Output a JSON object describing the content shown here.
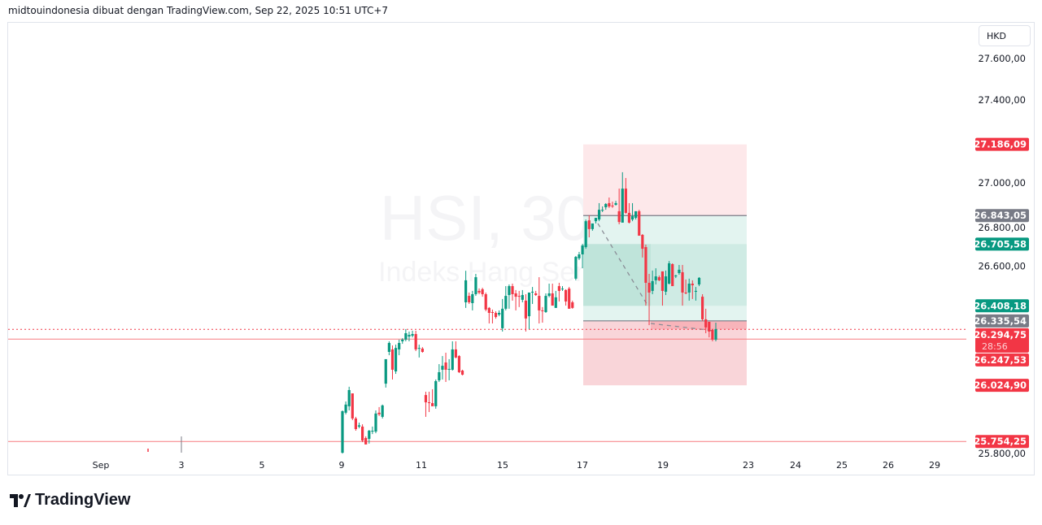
{
  "header": {
    "attribution": "midtouindonesia dibuat dengan TradingView.com, Sep 22, 2025 10:51 UTC+7"
  },
  "watermark": {
    "symbol": "HSI, 30",
    "name": "Indeks Hang Seng"
  },
  "currency_button": "HKD",
  "logo": {
    "text": "TradingView"
  },
  "colors": {
    "up": "#089981",
    "down": "#f23645",
    "label_gray": "#787b86",
    "axis_text": "#131722"
  },
  "chart_data": {
    "type": "candlestick",
    "interval": "30",
    "ylim": [
      25700,
      27700
    ],
    "grid": false,
    "x_ticks": [
      "Sep",
      "3",
      "5",
      "9",
      "11",
      "15",
      "17",
      "19",
      "23",
      "24",
      "25",
      "26",
      "29"
    ],
    "y_ticks": [
      "27.600,00",
      "27.400,00",
      "27.000,00",
      "26.800,00",
      "26.600,00",
      "25.800,00"
    ],
    "y_tick_values": [
      27600,
      27400,
      27000,
      26800,
      26600,
      25800
    ],
    "candles_ohlc": [
      [
        25700,
        25904,
        25696,
        25900
      ],
      [
        25893,
        25947,
        25885,
        25932
      ],
      [
        25924,
        26018,
        25904,
        26002
      ],
      [
        25986,
        25986,
        25857,
        25865
      ],
      [
        25865,
        25873,
        25806,
        25814
      ],
      [
        25826,
        25845,
        25818,
        25832
      ],
      [
        25826,
        25837,
        25751,
        25759
      ],
      [
        25771,
        25779,
        25740,
        25740
      ],
      [
        25767,
        25810,
        25744,
        25806
      ],
      [
        25802,
        25826,
        25790,
        25806
      ],
      [
        25802,
        25904,
        25794,
        25889
      ],
      [
        25893,
        25920,
        25877,
        25885
      ],
      [
        25873,
        25932,
        25865,
        25928
      ],
      [
        26033,
        26041,
        26014,
        26151
      ],
      [
        26186,
        26237,
        26170,
        26229
      ],
      [
        26198,
        26217,
        26053,
        26100
      ],
      [
        26092,
        26221,
        26080,
        26205
      ],
      [
        26198,
        26245,
        26170,
        26229
      ],
      [
        26237,
        26252,
        26225,
        26245
      ],
      [
        26245,
        26296,
        26237,
        26276
      ],
      [
        26260,
        26284,
        26237,
        26268
      ],
      [
        26264,
        26288,
        26256,
        26272
      ],
      [
        26272,
        26288,
        26190,
        26198
      ],
      [
        26202,
        26221,
        26159,
        26205
      ],
      [
        26202,
        26209,
        26182,
        26186
      ],
      [
        25978,
        25994,
        25873,
        25943
      ],
      [
        25943,
        25994,
        25896,
        25941
      ],
      [
        25939,
        26006,
        25932,
        25924
      ],
      [
        25924,
        26053,
        25912,
        26045
      ],
      [
        26049,
        26127,
        26041,
        26088
      ],
      [
        26100,
        26166,
        26053,
        26119
      ],
      [
        26135,
        26182,
        26041,
        26100
      ],
      [
        26100,
        26151,
        26049,
        26104
      ],
      [
        26100,
        26237,
        26096,
        26198
      ],
      [
        26198,
        26237,
        26155,
        26159
      ],
      [
        26166,
        26170,
        26084,
        26088
      ],
      [
        26096,
        26100,
        26073,
        26076
      ],
      [
        26425,
        26577,
        26398,
        26531
      ],
      [
        26456,
        26472,
        26417,
        26425
      ],
      [
        26421,
        26480,
        26386,
        26464
      ],
      [
        26464,
        26562,
        26456,
        26546
      ],
      [
        26480,
        26492,
        26464,
        26472
      ],
      [
        26488,
        26495,
        26452,
        26464
      ],
      [
        26464,
        26472,
        26382,
        26390
      ],
      [
        26398,
        26402,
        26323,
        26374
      ],
      [
        26378,
        26390,
        26323,
        26376
      ],
      [
        26374,
        26382,
        26346,
        26354
      ],
      [
        26366,
        26386,
        26358,
        26374
      ],
      [
        26300,
        26441,
        26284,
        26394
      ],
      [
        26394,
        26503,
        26386,
        26456
      ],
      [
        26460,
        26511,
        26394,
        26503
      ],
      [
        26503,
        26515,
        26433,
        26464
      ],
      [
        26468,
        26484,
        26386,
        26452
      ],
      [
        26456,
        26480,
        26402,
        26453
      ],
      [
        26437,
        26484,
        26425,
        26460
      ],
      [
        26433,
        26464,
        26284,
        26347
      ],
      [
        26358,
        26464,
        26296,
        26472
      ],
      [
        26472,
        26499,
        26417,
        26476
      ],
      [
        26468,
        26480,
        26456,
        26460
      ],
      [
        26456,
        26546,
        26323,
        26386
      ],
      [
        26386,
        26402,
        26327,
        26382
      ],
      [
        26378,
        26468,
        26374,
        26456
      ],
      [
        26456,
        26515,
        26449,
        26468
      ],
      [
        26468,
        26515,
        26409,
        26409
      ],
      [
        26398,
        26480,
        26398,
        26449
      ],
      [
        26503,
        26519,
        26429,
        26480
      ],
      [
        26488,
        26503,
        26480,
        26491
      ],
      [
        26484,
        26488,
        26409,
        26429
      ],
      [
        26491,
        26499,
        26394,
        26394
      ],
      [
        26425,
        26433,
        26394,
        26398
      ],
      [
        26539,
        26648,
        26531,
        26644
      ],
      [
        26637,
        26668,
        26629,
        26656
      ],
      [
        26656,
        26707,
        26589,
        26699
      ],
      [
        26691,
        26824,
        26683,
        26816
      ],
      [
        26820,
        26844,
        26738,
        26778
      ],
      [
        26778,
        26793,
        26770,
        26805
      ],
      [
        26816,
        26832,
        26805,
        26832
      ],
      [
        26824,
        26903,
        26816,
        26871
      ],
      [
        26868,
        26887,
        26860,
        26871
      ],
      [
        26883,
        26903,
        26871,
        26899
      ],
      [
        26903,
        26930,
        26880,
        26887
      ],
      [
        26891,
        26910,
        26880,
        26890
      ],
      [
        26895,
        26914,
        26891,
        26903
      ],
      [
        26864,
        26973,
        26801,
        26812
      ],
      [
        26809,
        27052,
        26809,
        26973
      ],
      [
        26973,
        27024,
        26852,
        26856
      ],
      [
        26856,
        26903,
        26805,
        26809
      ],
      [
        26824,
        26903,
        26816,
        26840
      ],
      [
        26832,
        26864,
        26824,
        26864
      ],
      [
        26864,
        26871,
        26746,
        26746
      ],
      [
        26750,
        26754,
        26641,
        26683
      ],
      [
        26691,
        26703,
        26409,
        26519
      ],
      [
        26519,
        26562,
        26315,
        26472
      ],
      [
        26480,
        26578,
        26464,
        26527
      ],
      [
        26531,
        26589,
        26511,
        26550
      ],
      [
        26546,
        26554,
        26527,
        26531
      ],
      [
        26574,
        26574,
        26409,
        26480
      ],
      [
        26476,
        26578,
        26460,
        26550
      ],
      [
        26515,
        26624,
        26511,
        26613
      ],
      [
        26609,
        26613,
        26511,
        26503
      ],
      [
        26550,
        26558,
        26542,
        26554
      ],
      [
        26566,
        26605,
        26558,
        26582
      ],
      [
        26570,
        26605,
        26409,
        26472
      ],
      [
        26472,
        26535,
        26464,
        26468
      ],
      [
        26472,
        26539,
        26433,
        26515
      ],
      [
        26515,
        26531,
        26441,
        26507
      ],
      [
        26476,
        26499,
        26433,
        26480
      ],
      [
        26511,
        26546,
        26503,
        26543
      ],
      [
        26452,
        26464,
        26335,
        26343
      ],
      [
        26343,
        26394,
        26276,
        26304
      ],
      [
        26331,
        26331,
        26256,
        26284
      ],
      [
        26292,
        26296,
        26237,
        26245
      ],
      [
        26245,
        26327,
        26237,
        26296
      ]
    ],
    "position_tool": {
      "upper_stop": 27186.09,
      "target_line": 26843.05,
      "target": 26705.58,
      "entry_zone": 26408.18,
      "entry": 26335.54,
      "lower_stop": 26024.9
    },
    "horizontal_lines": [
      {
        "price": 26247.53,
        "style": "solid",
        "color": "#f77c80"
      },
      {
        "price": 26294.75,
        "style": "dotted",
        "color": "#f23645"
      },
      {
        "price": 25754.25,
        "style": "solid",
        "color": "#f77c80"
      }
    ],
    "price_labels": [
      {
        "text": "27.186,09",
        "price": 27186.09,
        "color": "#f23645"
      },
      {
        "text": "26.843,05",
        "price": 26843.05,
        "color": "#787b86"
      },
      {
        "text": "26.705,58",
        "price": 26705.58,
        "color": "#089981"
      },
      {
        "text": "26.408,18",
        "price": 26408.18,
        "color": "#089981"
      },
      {
        "text": "26.335,54",
        "price": 26335.54,
        "color": "#787b86"
      },
      {
        "text": "26.294,75",
        "price": 26294.75,
        "color": "#f23645",
        "sub": "28:56"
      },
      {
        "text": "26.247,53",
        "price": 26247.53,
        "color": "#f23645"
      },
      {
        "text": "26.024,90",
        "price": 26024.9,
        "color": "#f23645"
      },
      {
        "text": "25.754,25",
        "price": 25754.25,
        "color": "#f23645"
      }
    ]
  }
}
